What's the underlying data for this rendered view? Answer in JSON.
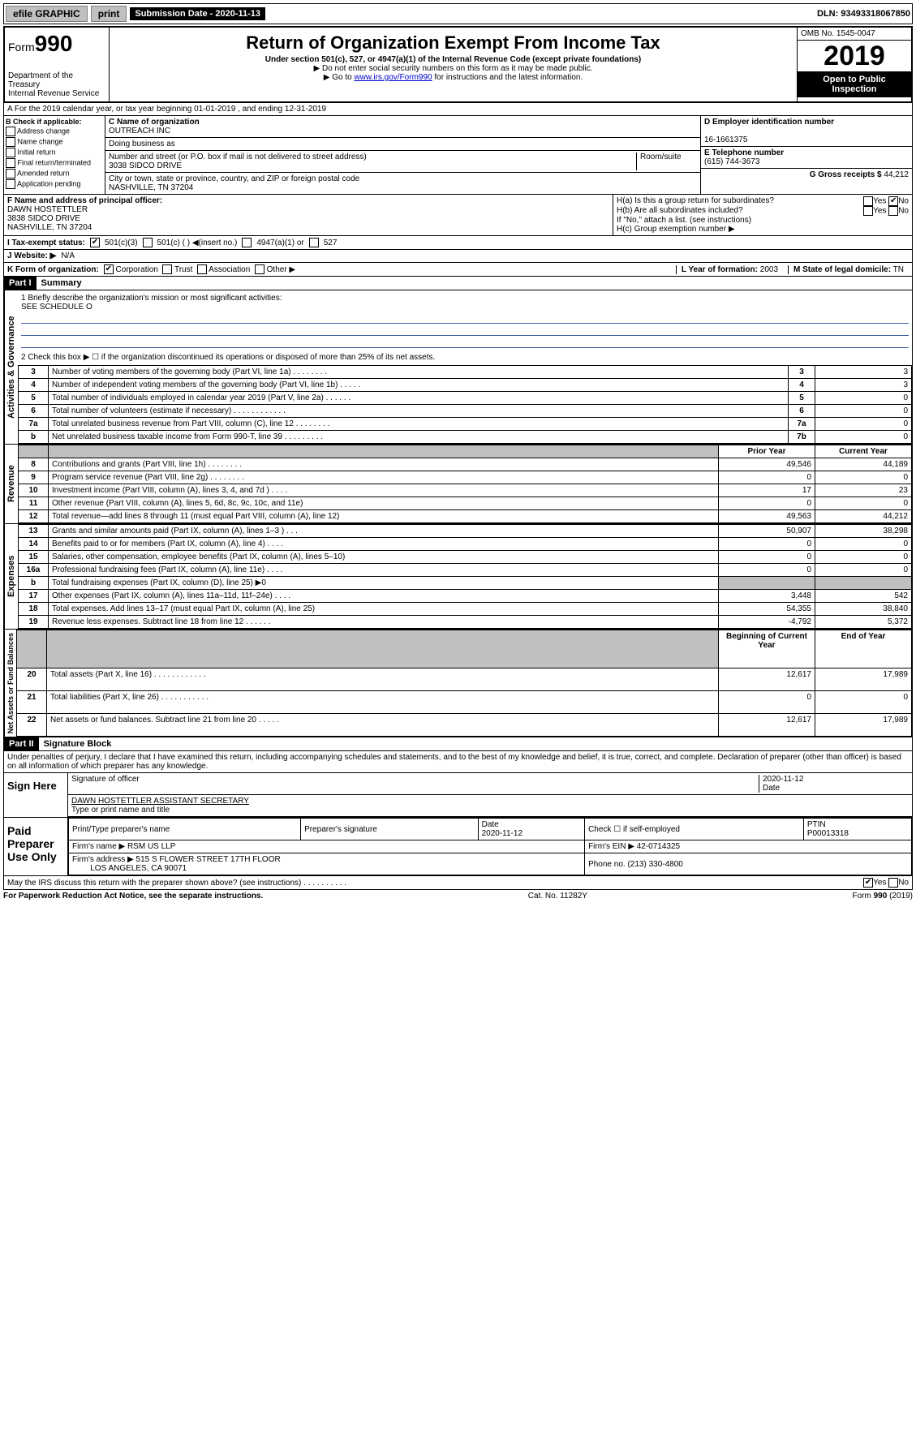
{
  "top": {
    "efile": "efile GRAPHIC",
    "print": "print",
    "submission": "Submission Date - 2020-11-13",
    "dln": "DLN: 93493318067850"
  },
  "header": {
    "form_prefix": "Form",
    "form_num": "990",
    "dept": "Department of the Treasury",
    "irs": "Internal Revenue Service",
    "title": "Return of Organization Exempt From Income Tax",
    "sub": "Under section 501(c), 527, or 4947(a)(1) of the Internal Revenue Code (except private foundations)",
    "note1": "▶ Do not enter social security numbers on this form as it may be made public.",
    "note2_pre": "▶ Go to ",
    "note2_link": "www.irs.gov/Form990",
    "note2_post": " for instructions and the latest information.",
    "omb": "OMB No. 1545-0047",
    "year": "2019",
    "inspect1": "Open to Public",
    "inspect2": "Inspection"
  },
  "rowA": "A For the 2019 calendar year, or tax year beginning 01-01-2019    , and ending 12-31-2019",
  "checkB": {
    "title": "B Check if applicable:",
    "opts": [
      "Address change",
      "Name change",
      "Initial return",
      "Final return/terminated",
      "Amended return",
      "Application pending"
    ]
  },
  "colC": {
    "name_label": "C Name of organization",
    "name": "OUTREACH INC",
    "dba_label": "Doing business as",
    "addr_label": "Number and street (or P.O. box if mail is not delivered to street address)",
    "room_label": "Room/suite",
    "addr": "3038 SIDCO DRIVE",
    "city_label": "City or town, state or province, country, and ZIP or foreign postal code",
    "city": "NASHVILLE, TN  37204"
  },
  "colDE": {
    "d_label": "D Employer identification number",
    "d_val": "16-1661375",
    "e_label": "E Telephone number",
    "e_val": "(615) 744-3673",
    "g_label": "G Gross receipts $",
    "g_val": "44,212"
  },
  "colF": {
    "label": "F Name and address of principal officer:",
    "name": "DAWN HOSTETTLER",
    "addr1": "3838 SIDCO DRIVE",
    "addr2": "NASHVILLE, TN  37204"
  },
  "colH": {
    "ha": "H(a)  Is this a group return for subordinates?",
    "ha_yes": "Yes",
    "ha_no": "No",
    "hb": "H(b)  Are all subordinates included?",
    "hb_note": "If \"No,\" attach a list. (see instructions)",
    "hc": "H(c)  Group exemption number ▶"
  },
  "rowI": {
    "label": "I   Tax-exempt status:",
    "opt1": "501(c)(3)",
    "opt2": "501(c) (  ) ◀(insert no.)",
    "opt3": "4947(a)(1) or",
    "opt4": "527"
  },
  "rowJ": {
    "label": "J   Website: ▶",
    "val": "N/A"
  },
  "rowK": {
    "label": "K Form of organization:",
    "opts": [
      "Corporation",
      "Trust",
      "Association",
      "Other ▶"
    ],
    "l_label": "L Year of formation:",
    "l_val": "2003",
    "m_label": "M State of legal domicile:",
    "m_val": "TN"
  },
  "part1": {
    "header": "Part I",
    "title": "Summary",
    "q1": "1  Briefly describe the organization's mission or most significant activities:",
    "q1_val": "SEE SCHEDULE O",
    "q2": "2   Check this box ▶ ☐  if the organization discontinued its operations or disposed of more than 25% of its net assets.",
    "rows_gov": [
      {
        "n": "3",
        "t": "Number of voting members of the governing body (Part VI, line 1a)   .    .    .    .    .    .    .    .",
        "l": "3",
        "v": "3"
      },
      {
        "n": "4",
        "t": "Number of independent voting members of the governing body (Part VI, line 1b)  .    .    .    .    .",
        "l": "4",
        "v": "3"
      },
      {
        "n": "5",
        "t": "Total number of individuals employed in calendar year 2019 (Part V, line 2a)  .    .    .    .    .    .",
        "l": "5",
        "v": "0"
      },
      {
        "n": "6",
        "t": "Total number of volunteers (estimate if necessary)   .    .    .    .    .    .    .    .    .    .    .    .",
        "l": "6",
        "v": "0"
      },
      {
        "n": "7a",
        "t": "Total unrelated business revenue from Part VIII, column (C), line 12   .    .    .    .    .    .    .    .",
        "l": "7a",
        "v": "0"
      },
      {
        "n": "b",
        "t": "Net unrelated business taxable income from Form 990-T, line 39   .    .    .    .    .    .    .    .    .",
        "l": "7b",
        "v": "0"
      }
    ],
    "col_prior": "Prior Year",
    "col_current": "Current Year",
    "rows_rev": [
      {
        "n": "8",
        "t": "Contributions and grants (Part VIII, line 1h)   .    .    .    .    .    .    .    .",
        "p": "49,546",
        "c": "44,189"
      },
      {
        "n": "9",
        "t": "Program service revenue (Part VIII, line 2g)   .    .    .    .    .    .    .    .",
        "p": "0",
        "c": "0"
      },
      {
        "n": "10",
        "t": "Investment income (Part VIII, column (A), lines 3, 4, and 7d )   .    .    .    .",
        "p": "17",
        "c": "23"
      },
      {
        "n": "11",
        "t": "Other revenue (Part VIII, column (A), lines 5, 6d, 8c, 9c, 10c, and 11e)",
        "p": "0",
        "c": "0"
      },
      {
        "n": "12",
        "t": "Total revenue—add lines 8 through 11 (must equal Part VIII, column (A), line 12)",
        "p": "49,563",
        "c": "44,212"
      }
    ],
    "rows_exp": [
      {
        "n": "13",
        "t": "Grants and similar amounts paid (Part IX, column (A), lines 1–3 )   .    .    .",
        "p": "50,907",
        "c": "38,298"
      },
      {
        "n": "14",
        "t": "Benefits paid to or for members (Part IX, column (A), line 4)  .    .    .    .",
        "p": "0",
        "c": "0"
      },
      {
        "n": "15",
        "t": "Salaries, other compensation, employee benefits (Part IX, column (A), lines 5–10)",
        "p": "0",
        "c": "0"
      },
      {
        "n": "16a",
        "t": "Professional fundraising fees (Part IX, column (A), line 11e)   .    .    .    .",
        "p": "0",
        "c": "0"
      },
      {
        "n": "b",
        "t": "Total fundraising expenses (Part IX, column (D), line 25) ▶0",
        "p": "",
        "c": "",
        "grey": true
      },
      {
        "n": "17",
        "t": "Other expenses (Part IX, column (A), lines 11a–11d, 11f–24e)   .    .    .    .",
        "p": "3,448",
        "c": "542"
      },
      {
        "n": "18",
        "t": "Total expenses. Add lines 13–17 (must equal Part IX, column (A), line 25)",
        "p": "54,355",
        "c": "38,840"
      },
      {
        "n": "19",
        "t": "Revenue less expenses. Subtract line 18 from line 12   .    .    .    .    .    .",
        "p": "-4,792",
        "c": "5,372"
      }
    ],
    "col_begin": "Beginning of Current Year",
    "col_end": "End of Year",
    "rows_net": [
      {
        "n": "20",
        "t": "Total assets (Part X, line 16)   .    .    .    .    .    .    .    .    .    .    .    .",
        "p": "12,617",
        "c": "17,989"
      },
      {
        "n": "21",
        "t": "Total liabilities (Part X, line 26)   .    .    .    .    .    .    .    .    .    .    .",
        "p": "0",
        "c": "0"
      },
      {
        "n": "22",
        "t": "Net assets or fund balances. Subtract line 21 from line 20   .    .    .    .    .",
        "p": "12,617",
        "c": "17,989"
      }
    ],
    "side_labels": {
      "gov": "Activities & Governance",
      "rev": "Revenue",
      "exp": "Expenses",
      "net": "Net Assets or Fund Balances"
    }
  },
  "part2": {
    "header": "Part II",
    "title": "Signature Block",
    "decl": "Under penalties of perjury, I declare that I have examined this return, including accompanying schedules and statements, and to the best of my knowledge and belief, it is true, correct, and complete. Declaration of preparer (other than officer) is based on all information of which preparer has any knowledge.",
    "sign_here": "Sign Here",
    "sig_officer": "Signature of officer",
    "sig_date": "2020-11-12",
    "sig_date_label": "Date",
    "typed_name": "DAWN HOSTETTLER  ASSISTANT SECRETARY",
    "typed_label": "Type or print name and title",
    "paid": "Paid Preparer Use Only",
    "prep_name_label": "Print/Type preparer's name",
    "prep_sig_label": "Preparer's signature",
    "prep_date_label": "Date",
    "prep_date": "2020-11-12",
    "prep_check": "Check ☐ if self-employed",
    "ptin_label": "PTIN",
    "ptin": "P00013318",
    "firm_name_label": "Firm's name    ▶",
    "firm_name": "RSM US LLP",
    "firm_ein_label": "Firm's EIN ▶",
    "firm_ein": "42-0714325",
    "firm_addr_label": "Firm's address ▶",
    "firm_addr1": "515 S FLOWER STREET 17TH FLOOR",
    "firm_addr2": "LOS ANGELES, CA  90071",
    "phone_label": "Phone no.",
    "phone": "(213) 330-4800",
    "discuss": "May the IRS discuss this return with the preparer shown above? (see instructions)   .    .    .    .    .    .    .    .    .    .",
    "discuss_yes": "Yes",
    "discuss_no": "No"
  },
  "footer": {
    "pra": "For Paperwork Reduction Act Notice, see the separate instructions.",
    "cat": "Cat. No. 11282Y",
    "form": "Form 990 (2019)"
  }
}
